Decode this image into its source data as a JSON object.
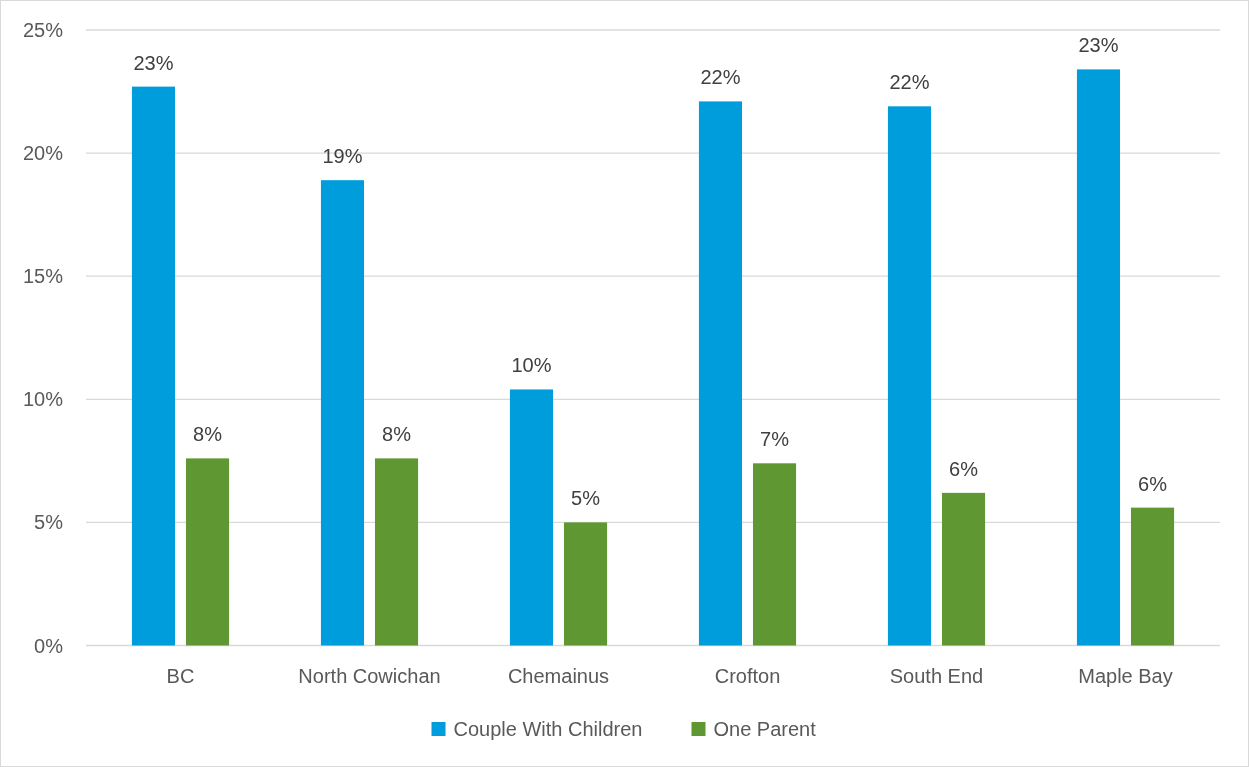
{
  "chart_data": {
    "type": "bar",
    "categories": [
      "BC",
      "North Cowichan",
      "Chemainus",
      "Crofton",
      "South End",
      "Maple Bay"
    ],
    "series": [
      {
        "name": "Couple With Children",
        "color": "#009ddc",
        "values": [
          22.7,
          18.9,
          10.4,
          22.1,
          21.9,
          23.4
        ],
        "value_labels": [
          "23%",
          "19%",
          "10%",
          "22%",
          "22%",
          "23%"
        ]
      },
      {
        "name": "One Parent",
        "color": "#5f9732",
        "values": [
          7.6,
          7.6,
          5.0,
          7.4,
          6.2,
          5.6
        ],
        "value_labels": [
          "8%",
          "8%",
          "5%",
          "7%",
          "6%",
          "6%"
        ]
      }
    ],
    "ylim": [
      0,
      25
    ],
    "yticks": [
      {
        "value": 0,
        "label": "0%"
      },
      {
        "value": 5,
        "label": "5%"
      },
      {
        "value": 10,
        "label": "10%"
      },
      {
        "value": 15,
        "label": "15%"
      },
      {
        "value": 20,
        "label": "20%"
      },
      {
        "value": 25,
        "label": "25%"
      }
    ],
    "grid": "y",
    "legend": "bottom"
  }
}
